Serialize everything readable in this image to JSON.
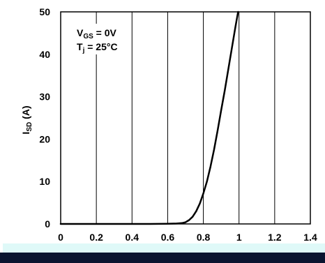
{
  "chart_data": {
    "type": "line",
    "title": "",
    "xlabel": "",
    "ylabel": "I_SD (A)",
    "ylabel_main": "I",
    "ylabel_sub": "SD",
    "ylabel_unit": " (A)",
    "xlim": [
      0,
      1.4
    ],
    "ylim": [
      0,
      50
    ],
    "x_ticks": [
      0,
      0.2,
      0.4,
      0.6,
      0.8,
      1.0,
      1.2,
      1.4
    ],
    "x_tick_labels": [
      "0",
      "0.2",
      "0.4",
      "0.6",
      "0.8",
      "1",
      "1.2",
      "1.4"
    ],
    "y_ticks": [
      0,
      10,
      20,
      30,
      40,
      50
    ],
    "y_tick_labels": [
      "0",
      "10",
      "20",
      "30",
      "40",
      "50"
    ],
    "grid": {
      "vertical": true,
      "horizontal": false
    },
    "series": [
      {
        "x": [
          0.0,
          0.1,
          0.2,
          0.3,
          0.4,
          0.5,
          0.6,
          0.65,
          0.68,
          0.7,
          0.72,
          0.74,
          0.76,
          0.78,
          0.8,
          0.82,
          0.84,
          0.86,
          0.88,
          0.9,
          0.92,
          0.94,
          0.96,
          0.98,
          0.995
        ],
        "y": [
          0.0,
          0.0,
          0.0,
          0.0,
          0.0,
          0.0,
          0.05,
          0.1,
          0.2,
          0.4,
          0.9,
          1.7,
          3.0,
          4.8,
          7.2,
          10.0,
          13.5,
          17.5,
          22.0,
          26.8,
          31.5,
          36.5,
          41.5,
          46.5,
          50.0
        ],
        "color": "#000000"
      }
    ],
    "annotations": [
      {
        "main": "V",
        "sub": "GS",
        "rest": " = 0V"
      },
      {
        "main": "T",
        "sub": "j",
        "rest": " = 25°C"
      }
    ]
  },
  "colors": {
    "line": "#000000",
    "axis": "#000000",
    "grid": "#000000",
    "artifact_light": "#dff9f8",
    "artifact_dark": "#0a1430"
  }
}
